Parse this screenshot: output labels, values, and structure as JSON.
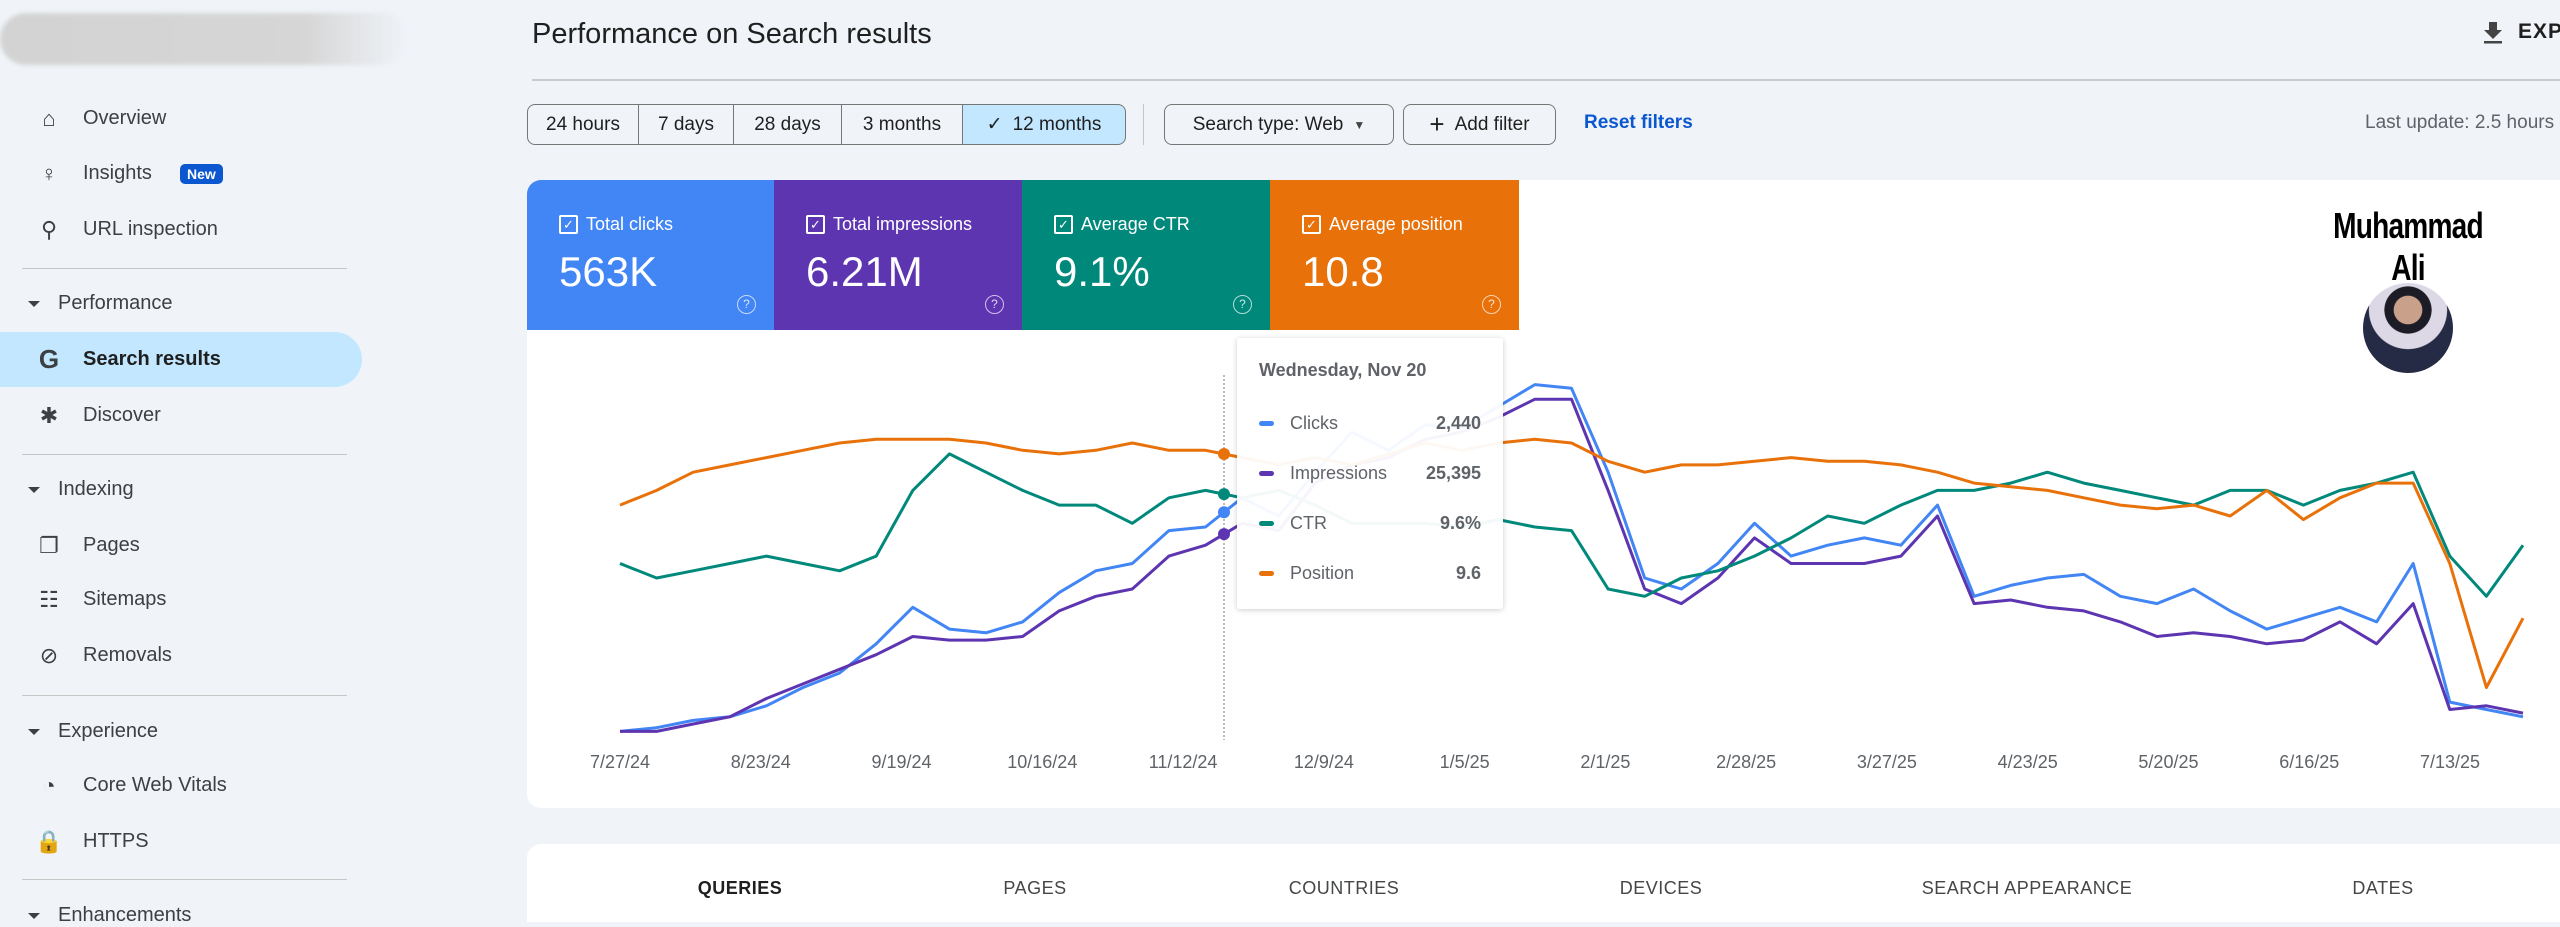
{
  "sidebar": {
    "items": [
      {
        "label": "Overview",
        "icon": "home-icon"
      },
      {
        "label": "Insights",
        "icon": "lightbulb-icon",
        "badge": "New"
      },
      {
        "label": "URL inspection",
        "icon": "search-icon"
      },
      {
        "label": "Search results",
        "icon": "google-g-icon",
        "active": true
      },
      {
        "label": "Discover",
        "icon": "asterisk-icon"
      },
      {
        "label": "Pages",
        "icon": "pages-icon"
      },
      {
        "label": "Sitemaps",
        "icon": "sitemap-icon"
      },
      {
        "label": "Removals",
        "icon": "eye-off-icon"
      },
      {
        "label": "Core Web Vitals",
        "icon": "gauge-icon"
      },
      {
        "label": "HTTPS",
        "icon": "lock-icon"
      }
    ],
    "sections": [
      "Performance",
      "Indexing",
      "Experience",
      "Enhancements"
    ]
  },
  "header": {
    "title": "Performance on Search results",
    "export_label": "EXPO"
  },
  "filters": {
    "ranges": [
      "24 hours",
      "7 days",
      "28 days",
      "3 months",
      "12 months"
    ],
    "selected_range": "12 months",
    "search_type": "Search type: Web",
    "add_filter": "Add filter",
    "reset": "Reset filters",
    "last_update": "Last update: 2.5 hours"
  },
  "metrics": [
    {
      "label": "Total clicks",
      "value": "563K",
      "color": "#4285f4"
    },
    {
      "label": "Total impressions",
      "value": "6.21M",
      "color": "#5e35b1"
    },
    {
      "label": "Average CTR",
      "value": "9.1%",
      "color": "#00897b"
    },
    {
      "label": "Average position",
      "value": "10.8",
      "color": "#e8710a"
    }
  ],
  "tooltip": {
    "date": "Wednesday, Nov 20",
    "rows": [
      {
        "label": "Clicks",
        "value": "2,440",
        "color": "#4285f4"
      },
      {
        "label": "Impressions",
        "value": "25,395",
        "color": "#5e35b1"
      },
      {
        "label": "CTR",
        "value": "9.6%",
        "color": "#00897b"
      },
      {
        "label": "Position",
        "value": "9.6",
        "color": "#e8710a"
      }
    ]
  },
  "watermark": {
    "name": "Muhammad Ali"
  },
  "tabs": [
    "QUERIES",
    "PAGES",
    "COUNTRIES",
    "DEVICES",
    "SEARCH APPEARANCE",
    "DATES"
  ],
  "chart_data": {
    "type": "line",
    "x_range": [
      "7/27/24",
      "7/26/25"
    ],
    "interval": "weekly",
    "x_ticks": [
      "7/27/24",
      "8/23/24",
      "9/19/24",
      "10/16/24",
      "11/12/24",
      "12/9/24",
      "1/5/25",
      "2/1/25",
      "2/28/25",
      "3/27/25",
      "4/23/25",
      "5/20/25",
      "6/16/25",
      "7/13/25"
    ],
    "y_units": "relative (0-100, no axis printed)",
    "grid": false,
    "hover_date": "Wednesday, Nov 20",
    "series": [
      {
        "name": "Clicks",
        "color": "#4285f4",
        "values": [
          1,
          2,
          4,
          5,
          8,
          13,
          17,
          25,
          35,
          29,
          28,
          31,
          39,
          45,
          47,
          56,
          57,
          65,
          60,
          72,
          83,
          78,
          85,
          84,
          90,
          96,
          95,
          72,
          43,
          40,
          47,
          58,
          49,
          52,
          54,
          52,
          63,
          38,
          41,
          43,
          44,
          38,
          36,
          40,
          34,
          29,
          32,
          35,
          31,
          47,
          9,
          7,
          5
        ]
      },
      {
        "name": "Impressions",
        "color": "#5e35b1",
        "values": [
          1,
          1,
          3,
          5,
          10,
          14,
          18,
          22,
          27,
          26,
          26,
          27,
          34,
          38,
          40,
          49,
          52,
          58,
          56,
          69,
          74,
          76,
          81,
          83,
          87,
          92,
          92,
          67,
          40,
          36,
          43,
          54,
          47,
          47,
          47,
          49,
          60,
          36,
          37,
          35,
          34,
          31,
          27,
          28,
          27,
          25,
          26,
          31,
          25,
          36,
          7,
          8,
          6
        ]
      },
      {
        "name": "CTR",
        "color": "#00897b",
        "values": [
          47,
          43,
          45,
          47,
          49,
          47,
          45,
          49,
          67,
          77,
          72,
          67,
          63,
          63,
          58,
          65,
          67,
          65,
          67,
          63,
          58,
          58,
          58,
          57,
          59,
          57,
          56,
          40,
          38,
          43,
          45,
          49,
          54,
          60,
          58,
          63,
          67,
          67,
          69,
          72,
          69,
          67,
          65,
          63,
          67,
          67,
          63,
          67,
          69,
          72,
          49,
          38,
          52
        ]
      },
      {
        "name": "Position",
        "color": "#e8710a",
        "values": [
          63,
          67,
          72,
          74,
          76,
          78,
          80,
          81,
          81,
          81,
          80,
          78,
          77,
          78,
          80,
          78,
          78,
          76,
          74,
          76,
          74,
          77,
          80,
          78,
          80,
          81,
          80,
          75,
          72,
          74,
          74,
          75,
          76,
          75,
          75,
          74,
          72,
          69,
          68,
          67,
          65,
          63,
          62,
          63,
          60,
          67,
          59,
          65,
          69,
          69,
          47,
          13,
          32
        ]
      }
    ]
  }
}
